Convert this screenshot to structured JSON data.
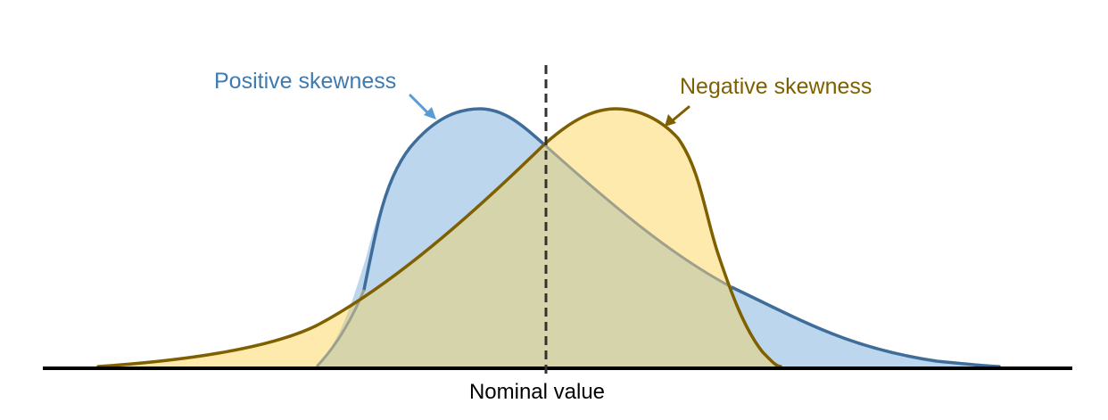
{
  "labels": {
    "positive": "Positive skewness",
    "negative": "Negative skewness",
    "nominal": "Nominal value"
  },
  "colors": {
    "positive_stroke": "#3f6d9a",
    "positive_fill": "#bcd6ee",
    "positive_label": "#3f7ab0",
    "positive_arrow": "#5b9bd5",
    "negative_stroke": "#7f6000",
    "negative_fill": "#ffeaae",
    "negative_label": "#7f6000",
    "overlap_fill": "#d6d4ab",
    "baseline": "#000000",
    "nominal_line": "#333333"
  }
}
